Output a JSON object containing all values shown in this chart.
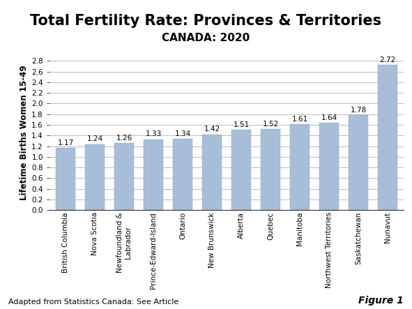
{
  "title": "Total Fertility Rate: Provinces & Territories",
  "subtitle": "CANADA: 2020",
  "categories": [
    "British Columbia",
    "Nova Scotia",
    "Newfoundland &\nLabrador",
    "Prince-Edward-Island",
    "Ontario",
    "New Brunswick",
    "Alberta",
    "Quebec",
    "Manitoba",
    "Northwest Territories",
    "Saskatchewan",
    "Nunavut"
  ],
  "values": [
    1.17,
    1.24,
    1.26,
    1.33,
    1.34,
    1.42,
    1.51,
    1.52,
    1.61,
    1.64,
    1.78,
    2.72
  ],
  "bar_color": "#a8bed8",
  "ylabel": "Lifetime Births Women 15-49",
  "ylim": [
    0.0,
    2.9
  ],
  "yticks": [
    0.0,
    0.2,
    0.4,
    0.6,
    0.8,
    1.0,
    1.2,
    1.4,
    1.6,
    1.8,
    2.0,
    2.2,
    2.4,
    2.6,
    2.8
  ],
  "footer_left": "Adapted from Statistics Canada: See Article",
  "footer_right": "Figure 1",
  "background_color": "#ffffff",
  "title_fontsize": 15,
  "subtitle_fontsize": 11,
  "label_fontsize": 7.5,
  "ylabel_fontsize": 8.5,
  "tick_fontsize": 7.5,
  "footer_fontsize": 8
}
